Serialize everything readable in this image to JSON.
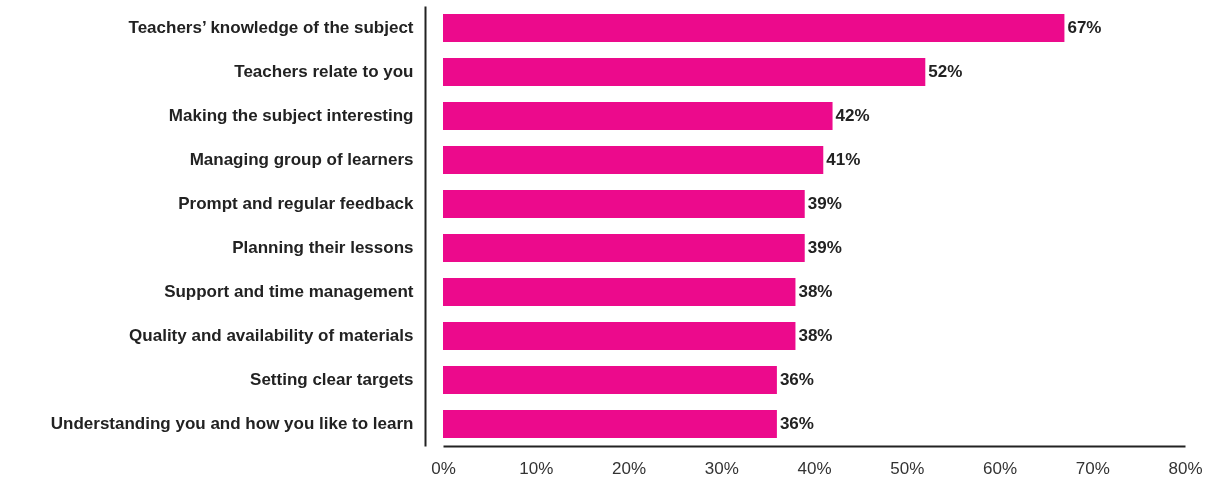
{
  "chart_data": {
    "type": "bar",
    "orientation": "horizontal",
    "categories": [
      "Teachers’ knowledge of the subject",
      "Teachers relate to you",
      "Making the subject interesting",
      "Managing group of learners",
      "Prompt and regular feedback",
      "Planning their lessons",
      "Support and time management",
      "Quality and availability of materials",
      "Setting clear targets",
      "Understanding you and how you like to learn"
    ],
    "values": [
      67,
      52,
      42,
      41,
      39,
      39,
      38,
      38,
      36,
      36
    ],
    "value_labels": [
      "67%",
      "52%",
      "42%",
      "41%",
      "39%",
      "39%",
      "38%",
      "38%",
      "36%",
      "36%"
    ],
    "color": "#ec0a8c",
    "xlim": [
      0,
      80
    ],
    "xticks": [
      {
        "value": 0,
        "label": "0%"
      },
      {
        "value": 10,
        "label": "10%"
      },
      {
        "value": 20,
        "label": "20%"
      },
      {
        "value": 30,
        "label": "30%"
      },
      {
        "value": 40,
        "label": "40%"
      },
      {
        "value": 50,
        "label": "50%"
      },
      {
        "value": 60,
        "label": "60%"
      },
      {
        "value": 70,
        "label": "70%"
      },
      {
        "value": 80,
        "label": "80%"
      }
    ]
  }
}
